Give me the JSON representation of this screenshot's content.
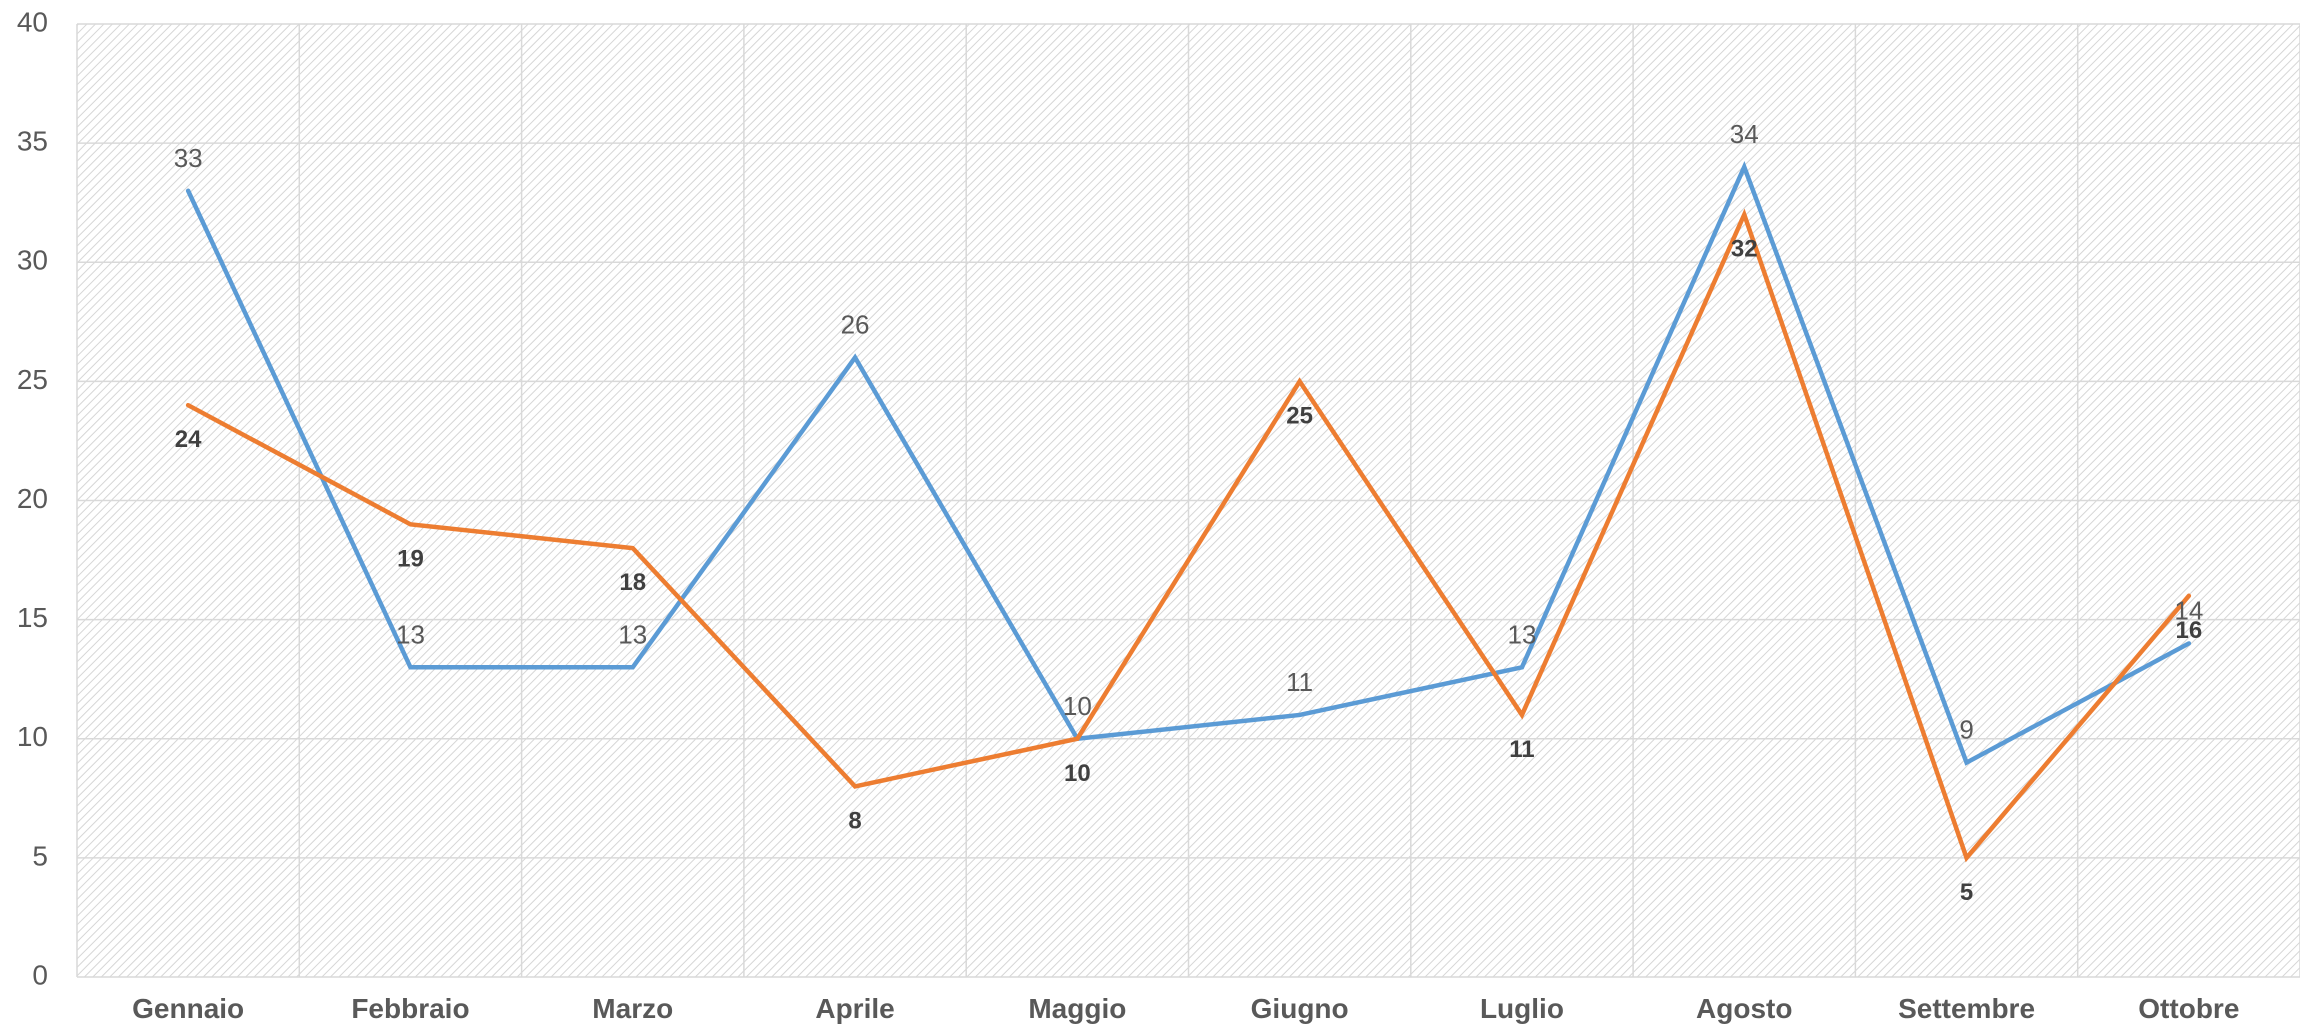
{
  "chart_data": {
    "type": "line",
    "categories": [
      "Gennaio",
      "Febbraio",
      "Marzo",
      "Aprile",
      "Maggio",
      "Giugno",
      "Luglio",
      "Agosto",
      "Settembre",
      "Ottobre"
    ],
    "series": [
      {
        "values": [
          33,
          13,
          13,
          26,
          10,
          11,
          13,
          34,
          9,
          14
        ],
        "color": "#5b9bd5"
      },
      {
        "values": [
          24,
          19,
          18,
          8,
          10,
          25,
          11,
          32,
          5,
          16
        ],
        "color": "#ed7d31"
      }
    ],
    "ylim": [
      0,
      40
    ],
    "yticks": [
      0,
      5,
      10,
      15,
      20,
      25,
      30,
      35,
      40
    ],
    "grid": true,
    "legend": "none",
    "data_labels": true
  }
}
